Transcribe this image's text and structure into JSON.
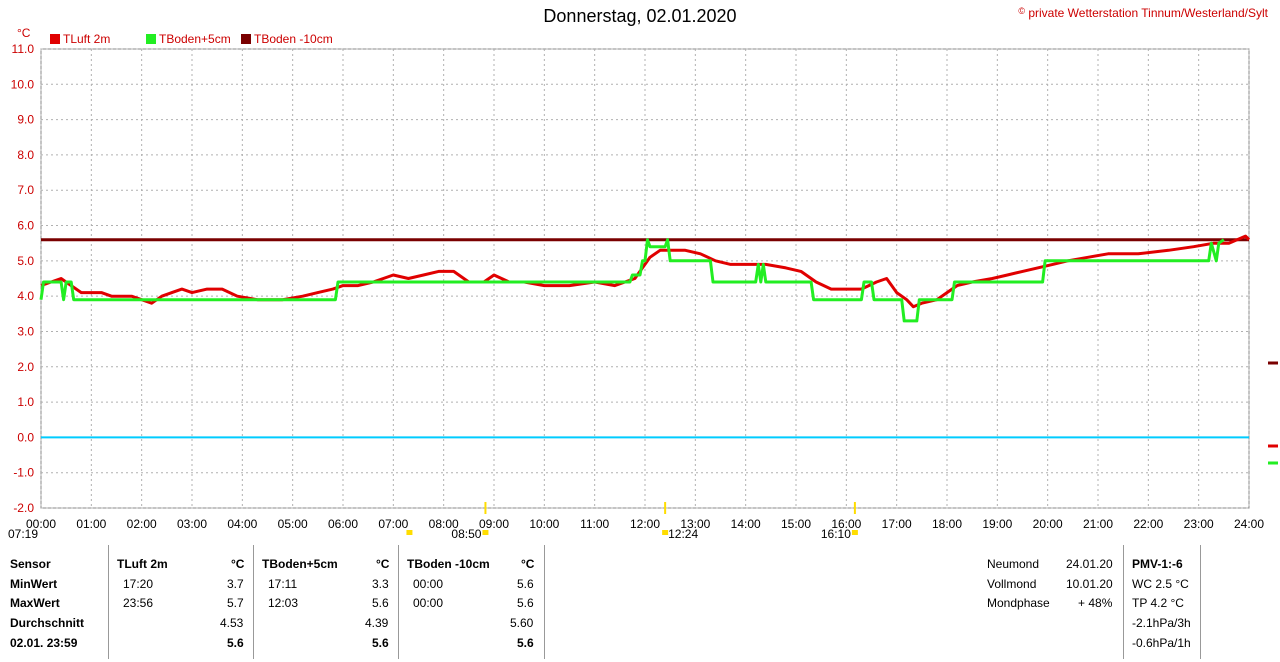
{
  "title": "Donnerstag, 02.01.2020",
  "copyright_symbol": "©",
  "copyright_text": "private Wetterstation Tinnum/Westerland/Sylt",
  "unit": "°C",
  "colors": {
    "tluft": "#e00000",
    "tboden5": "#22ee22",
    "tboden10": "#7a0000",
    "zero": "#00ccff",
    "grid": "#aaaaaa",
    "axis_text": "#cc0000"
  },
  "chart_data": {
    "type": "line",
    "ylim": [
      -2.0,
      11.0
    ],
    "yticks": [
      "11.0",
      "10.0",
      "9.0",
      "8.0",
      "7.0",
      "6.0",
      "5.0",
      "4.0",
      "3.0",
      "2.0",
      "1.0",
      "0.0",
      "-1.0",
      "-2.0"
    ],
    "xlim_hours": [
      0,
      24
    ],
    "xticks": [
      "00:00",
      "01:00",
      "02:00",
      "03:00",
      "04:00",
      "05:00",
      "06:00",
      "07:00",
      "08:00",
      "09:00",
      "10:00",
      "11:00",
      "12:00",
      "13:00",
      "14:00",
      "15:00",
      "16:00",
      "17:00",
      "18:00",
      "19:00",
      "20:00",
      "21:00",
      "22:00",
      "23:00",
      "24:00"
    ],
    "sun_markers": [
      {
        "label": "07:19",
        "hour": 7.32
      },
      {
        "label": "08:50",
        "hour": 8.83
      },
      {
        "label": "12:24",
        "hour": 12.4
      },
      {
        "label": "16:10",
        "hour": 16.17
      }
    ],
    "series": [
      {
        "name": "TLuft 2m",
        "color": "#e00000",
        "points": [
          [
            0,
            4.3
          ],
          [
            0.2,
            4.4
          ],
          [
            0.4,
            4.5
          ],
          [
            0.6,
            4.3
          ],
          [
            0.8,
            4.1
          ],
          [
            1,
            4.1
          ],
          [
            1.2,
            4.1
          ],
          [
            1.4,
            4.0
          ],
          [
            1.6,
            4.0
          ],
          [
            1.8,
            4.0
          ],
          [
            2,
            3.9
          ],
          [
            2.2,
            3.8
          ],
          [
            2.4,
            4.0
          ],
          [
            2.6,
            4.1
          ],
          [
            2.8,
            4.2
          ],
          [
            3,
            4.1
          ],
          [
            3.3,
            4.2
          ],
          [
            3.6,
            4.2
          ],
          [
            3.9,
            4.0
          ],
          [
            4.3,
            3.9
          ],
          [
            4.8,
            3.9
          ],
          [
            5.2,
            4.0
          ],
          [
            5.5,
            4.1
          ],
          [
            5.8,
            4.2
          ],
          [
            6,
            4.3
          ],
          [
            6.3,
            4.3
          ],
          [
            6.6,
            4.4
          ],
          [
            6.8,
            4.5
          ],
          [
            7,
            4.6
          ],
          [
            7.3,
            4.5
          ],
          [
            7.6,
            4.6
          ],
          [
            7.9,
            4.7
          ],
          [
            8.2,
            4.7
          ],
          [
            8.5,
            4.4
          ],
          [
            8.8,
            4.4
          ],
          [
            9,
            4.6
          ],
          [
            9.3,
            4.4
          ],
          [
            9.6,
            4.4
          ],
          [
            10,
            4.3
          ],
          [
            10.5,
            4.3
          ],
          [
            11,
            4.4
          ],
          [
            11.4,
            4.3
          ],
          [
            11.8,
            4.5
          ],
          [
            12.1,
            5.1
          ],
          [
            12.3,
            5.3
          ],
          [
            12.5,
            5.3
          ],
          [
            12.8,
            5.3
          ],
          [
            13.1,
            5.2
          ],
          [
            13.4,
            5.0
          ],
          [
            13.7,
            4.9
          ],
          [
            14,
            4.9
          ],
          [
            14.4,
            4.9
          ],
          [
            14.8,
            4.8
          ],
          [
            15.1,
            4.7
          ],
          [
            15.4,
            4.4
          ],
          [
            15.7,
            4.2
          ],
          [
            16,
            4.2
          ],
          [
            16.3,
            4.2
          ],
          [
            16.6,
            4.4
          ],
          [
            16.8,
            4.5
          ],
          [
            17,
            4.1
          ],
          [
            17.2,
            3.9
          ],
          [
            17.33,
            3.7
          ],
          [
            17.5,
            3.8
          ],
          [
            17.8,
            3.9
          ],
          [
            18,
            4.1
          ],
          [
            18.2,
            4.3
          ],
          [
            18.5,
            4.4
          ],
          [
            18.9,
            4.5
          ],
          [
            19.2,
            4.6
          ],
          [
            19.5,
            4.7
          ],
          [
            19.8,
            4.8
          ],
          [
            20.1,
            4.9
          ],
          [
            20.4,
            5.0
          ],
          [
            20.8,
            5.1
          ],
          [
            21.2,
            5.2
          ],
          [
            21.8,
            5.2
          ],
          [
            22.4,
            5.3
          ],
          [
            22.9,
            5.4
          ],
          [
            23.3,
            5.5
          ],
          [
            23.6,
            5.5
          ],
          [
            23.93,
            5.7
          ],
          [
            24,
            5.6
          ]
        ]
      },
      {
        "name": "TBoden+5cm",
        "color": "#22ee22",
        "points": [
          [
            0,
            3.9
          ],
          [
            0.05,
            4.4
          ],
          [
            0.4,
            4.4
          ],
          [
            0.45,
            3.9
          ],
          [
            0.5,
            4.4
          ],
          [
            0.6,
            4.4
          ],
          [
            0.65,
            3.9
          ],
          [
            1.5,
            3.9
          ],
          [
            3,
            3.9
          ],
          [
            5,
            3.9
          ],
          [
            5.85,
            3.9
          ],
          [
            5.9,
            4.4
          ],
          [
            7,
            4.4
          ],
          [
            9,
            4.4
          ],
          [
            11,
            4.4
          ],
          [
            11.7,
            4.4
          ],
          [
            11.75,
            4.6
          ],
          [
            11.9,
            4.6
          ],
          [
            11.95,
            5.0
          ],
          [
            12.0,
            5.0
          ],
          [
            12.05,
            5.6
          ],
          [
            12.1,
            5.4
          ],
          [
            12.4,
            5.4
          ],
          [
            12.45,
            5.6
          ],
          [
            12.5,
            5.0
          ],
          [
            13.3,
            5.0
          ],
          [
            13.35,
            4.4
          ],
          [
            14.2,
            4.4
          ],
          [
            14.25,
            4.9
          ],
          [
            14.3,
            4.4
          ],
          [
            14.35,
            4.9
          ],
          [
            14.4,
            4.4
          ],
          [
            15.3,
            4.4
          ],
          [
            15.35,
            3.9
          ],
          [
            16.3,
            3.9
          ],
          [
            16.35,
            4.4
          ],
          [
            16.5,
            4.4
          ],
          [
            16.55,
            3.9
          ],
          [
            17.1,
            3.9
          ],
          [
            17.15,
            3.3
          ],
          [
            17.4,
            3.3
          ],
          [
            17.45,
            3.9
          ],
          [
            18.1,
            3.9
          ],
          [
            18.15,
            4.4
          ],
          [
            19.9,
            4.4
          ],
          [
            19.95,
            5.0
          ],
          [
            23.2,
            5.0
          ],
          [
            23.25,
            5.5
          ],
          [
            23.35,
            5.0
          ],
          [
            23.4,
            5.5
          ],
          [
            23.5,
            5.6
          ]
        ]
      },
      {
        "name": "TBoden -10cm",
        "color": "#7a0000",
        "points": [
          [
            0,
            5.6
          ],
          [
            24,
            5.6
          ]
        ]
      }
    ],
    "reference_line": {
      "value": 0.0,
      "color": "#00ccff"
    }
  },
  "table": {
    "col1": {
      "header": "Sensor",
      "rows": [
        "MinWert",
        "MaxWert",
        "Durchschnitt",
        "02.01. 23:59"
      ]
    },
    "sensors": [
      {
        "name": "TLuft 2m",
        "unit": "°C",
        "min_time": "17:20",
        "min_val": "3.7",
        "max_time": "23:56",
        "max_val": "5.7",
        "avg": "4.53",
        "current": "5.6"
      },
      {
        "name": "TBoden+5cm",
        "unit": "°C",
        "min_time": "17:11",
        "min_val": "3.3",
        "max_time": "12:03",
        "max_val": "5.6",
        "avg": "4.39",
        "current": "5.6"
      },
      {
        "name": "TBoden -10cm",
        "unit": "°C",
        "min_time": "00:00",
        "min_val": "5.6",
        "max_time": "00:00",
        "max_val": "5.6",
        "avg": "5.60",
        "current": "5.6"
      }
    ],
    "moon": [
      {
        "label": "Neumond",
        "value": "24.01.20"
      },
      {
        "label": "Vollmond",
        "value": "10.01.20"
      },
      {
        "label": "Mondphase",
        "value": "+ 48%"
      }
    ],
    "pmv": {
      "header": "PMV-1:-6",
      "lines": [
        "WC 2.5 °C",
        "TP 4.2 °C",
        "-2.1hPa/3h",
        "-0.6hPa/1h"
      ]
    }
  }
}
